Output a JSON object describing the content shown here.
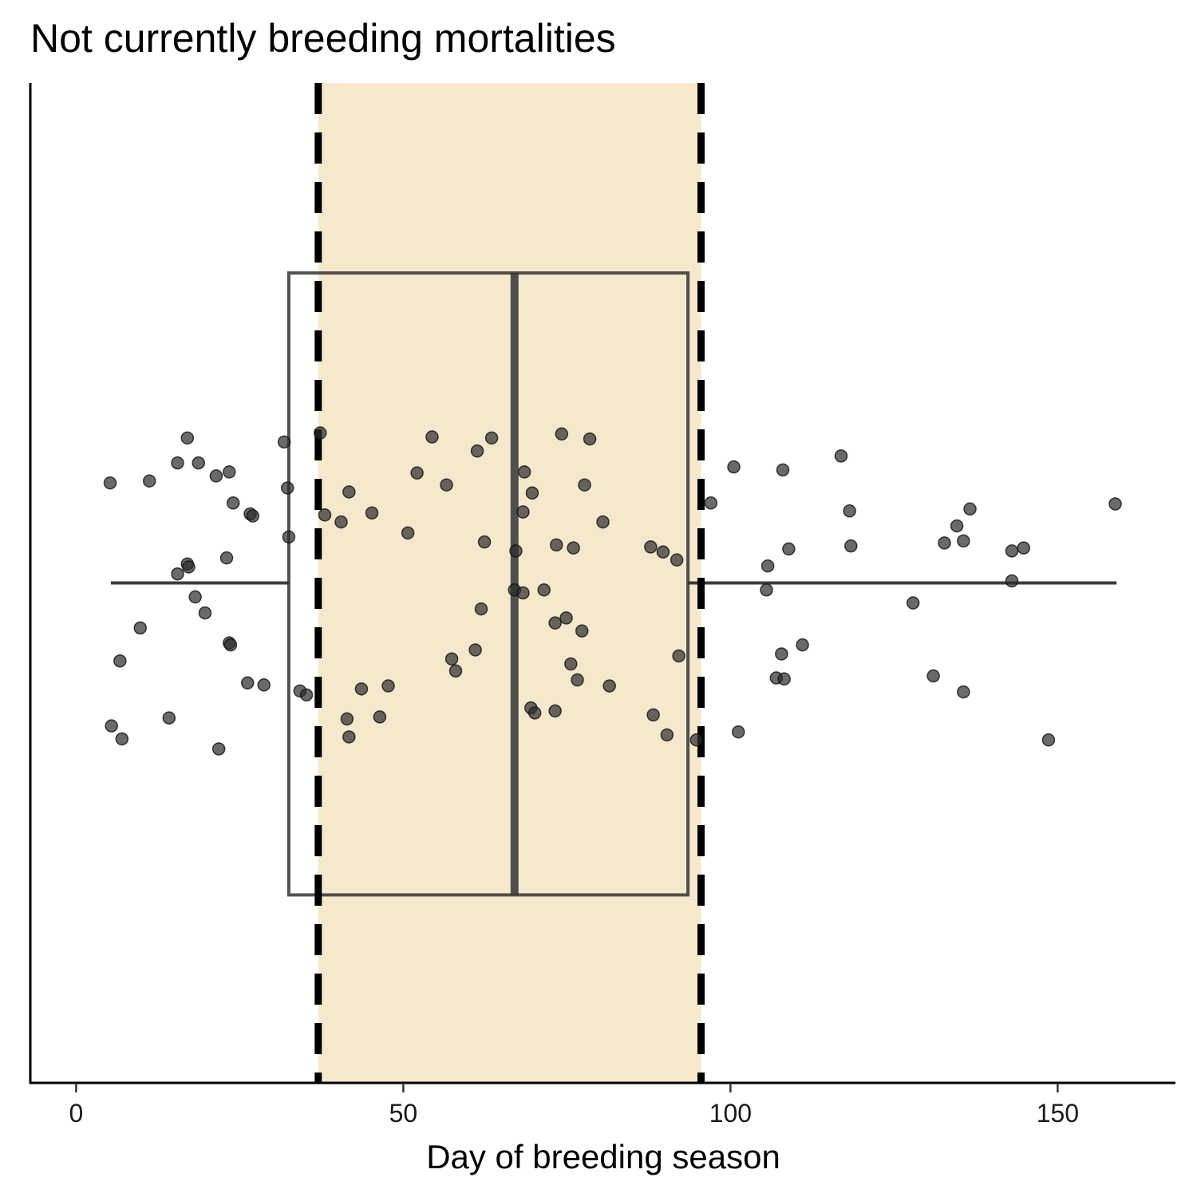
{
  "chart_data": {
    "type": "box-jitter",
    "title": "Not currently breeding mortalities",
    "xlabel": "Day of breeding season",
    "ylabel": "",
    "xlim": [
      -7,
      168
    ],
    "ylim": [
      0,
      1
    ],
    "xticks": [
      0,
      50,
      100,
      150
    ],
    "xtick_labels": [
      "0",
      "50",
      "100",
      "150"
    ],
    "grid": false,
    "legend": "none",
    "breeding_window": {
      "start": 37,
      "end": 95.5,
      "fill_color": "#f6e8cc",
      "line_color": "#000000",
      "line_style": "dashed"
    },
    "boxplot": {
      "whisker_low": 5.3,
      "q1": 32.5,
      "median": 67,
      "q3": 93.5,
      "whisker_high": 159,
      "box_ymin": 0.188,
      "box_ymax": 0.81,
      "whisker_y": 0.5,
      "color": "#333333"
    },
    "points_style": {
      "color": "#2b2b2b",
      "opacity": 0.7
    },
    "points": [
      {
        "x": 5.2,
        "y": 0.6
      },
      {
        "x": 5.4,
        "y": 0.357
      },
      {
        "x": 6.7,
        "y": 0.422
      },
      {
        "x": 7.0,
        "y": 0.344
      },
      {
        "x": 9.8,
        "y": 0.455
      },
      {
        "x": 11.2,
        "y": 0.602
      },
      {
        "x": 14.2,
        "y": 0.365
      },
      {
        "x": 15.5,
        "y": 0.62
      },
      {
        "x": 15.5,
        "y": 0.509
      },
      {
        "x": 17.0,
        "y": 0.519
      },
      {
        "x": 17.0,
        "y": 0.645
      },
      {
        "x": 17.2,
        "y": 0.516
      },
      {
        "x": 18.2,
        "y": 0.486
      },
      {
        "x": 18.7,
        "y": 0.62
      },
      {
        "x": 19.7,
        "y": 0.47
      },
      {
        "x": 21.4,
        "y": 0.607
      },
      {
        "x": 21.8,
        "y": 0.334
      },
      {
        "x": 23.0,
        "y": 0.525
      },
      {
        "x": 23.4,
        "y": 0.611
      },
      {
        "x": 23.4,
        "y": 0.44
      },
      {
        "x": 23.6,
        "y": 0.438
      },
      {
        "x": 24.0,
        "y": 0.58
      },
      {
        "x": 26.2,
        "y": 0.4
      },
      {
        "x": 26.6,
        "y": 0.569
      },
      {
        "x": 27.0,
        "y": 0.567
      },
      {
        "x": 28.7,
        "y": 0.398
      },
      {
        "x": 31.8,
        "y": 0.641
      },
      {
        "x": 32.3,
        "y": 0.595
      },
      {
        "x": 32.5,
        "y": 0.546
      },
      {
        "x": 34.2,
        "y": 0.392
      },
      {
        "x": 35.2,
        "y": 0.388
      },
      {
        "x": 37.3,
        "y": 0.65
      },
      {
        "x": 38.0,
        "y": 0.568
      },
      {
        "x": 40.5,
        "y": 0.561
      },
      {
        "x": 41.4,
        "y": 0.364
      },
      {
        "x": 41.7,
        "y": 0.591
      },
      {
        "x": 41.7,
        "y": 0.346
      },
      {
        "x": 43.6,
        "y": 0.394
      },
      {
        "x": 45.2,
        "y": 0.57
      },
      {
        "x": 46.4,
        "y": 0.366
      },
      {
        "x": 47.7,
        "y": 0.397
      },
      {
        "x": 50.7,
        "y": 0.55
      },
      {
        "x": 52.1,
        "y": 0.61
      },
      {
        "x": 54.4,
        "y": 0.646
      },
      {
        "x": 56.6,
        "y": 0.598
      },
      {
        "x": 57.4,
        "y": 0.424
      },
      {
        "x": 58.0,
        "y": 0.412
      },
      {
        "x": 61.0,
        "y": 0.433
      },
      {
        "x": 61.3,
        "y": 0.632
      },
      {
        "x": 61.9,
        "y": 0.474
      },
      {
        "x": 62.4,
        "y": 0.541
      },
      {
        "x": 63.5,
        "y": 0.645
      },
      {
        "x": 67.0,
        "y": 0.493
      },
      {
        "x": 67.2,
        "y": 0.532
      },
      {
        "x": 68.3,
        "y": 0.49
      },
      {
        "x": 68.5,
        "y": 0.611
      },
      {
        "x": 68.3,
        "y": 0.571
      },
      {
        "x": 69.5,
        "y": 0.375
      },
      {
        "x": 69.7,
        "y": 0.59
      },
      {
        "x": 70.1,
        "y": 0.37
      },
      {
        "x": 71.5,
        "y": 0.493
      },
      {
        "x": 73.2,
        "y": 0.46
      },
      {
        "x": 73.2,
        "y": 0.372
      },
      {
        "x": 73.4,
        "y": 0.538
      },
      {
        "x": 74.2,
        "y": 0.649
      },
      {
        "x": 74.9,
        "y": 0.465
      },
      {
        "x": 75.6,
        "y": 0.419
      },
      {
        "x": 76.0,
        "y": 0.535
      },
      {
        "x": 76.6,
        "y": 0.403
      },
      {
        "x": 77.3,
        "y": 0.452
      },
      {
        "x": 77.7,
        "y": 0.598
      },
      {
        "x": 78.5,
        "y": 0.644
      },
      {
        "x": 80.5,
        "y": 0.561
      },
      {
        "x": 81.5,
        "y": 0.397
      },
      {
        "x": 87.8,
        "y": 0.536
      },
      {
        "x": 88.2,
        "y": 0.368
      },
      {
        "x": 89.7,
        "y": 0.531
      },
      {
        "x": 90.3,
        "y": 0.348
      },
      {
        "x": 91.8,
        "y": 0.523
      },
      {
        "x": 92.1,
        "y": 0.427
      },
      {
        "x": 94.8,
        "y": 0.343
      },
      {
        "x": 97.0,
        "y": 0.58
      },
      {
        "x": 100.5,
        "y": 0.616
      },
      {
        "x": 101.2,
        "y": 0.351
      },
      {
        "x": 105.5,
        "y": 0.493
      },
      {
        "x": 105.7,
        "y": 0.517
      },
      {
        "x": 107.0,
        "y": 0.405
      },
      {
        "x": 107.8,
        "y": 0.429
      },
      {
        "x": 108.0,
        "y": 0.613
      },
      {
        "x": 108.2,
        "y": 0.404
      },
      {
        "x": 108.9,
        "y": 0.534
      },
      {
        "x": 111.0,
        "y": 0.438
      },
      {
        "x": 116.9,
        "y": 0.627
      },
      {
        "x": 118.2,
        "y": 0.572
      },
      {
        "x": 118.4,
        "y": 0.537
      },
      {
        "x": 127.9,
        "y": 0.48
      },
      {
        "x": 131.0,
        "y": 0.407
      },
      {
        "x": 132.7,
        "y": 0.54
      },
      {
        "x": 134.6,
        "y": 0.557
      },
      {
        "x": 135.6,
        "y": 0.542
      },
      {
        "x": 135.6,
        "y": 0.391
      },
      {
        "x": 136.6,
        "y": 0.574
      },
      {
        "x": 143.0,
        "y": 0.532
      },
      {
        "x": 143.0,
        "y": 0.502
      },
      {
        "x": 144.8,
        "y": 0.535
      },
      {
        "x": 148.6,
        "y": 0.343
      },
      {
        "x": 158.8,
        "y": 0.579
      }
    ]
  }
}
